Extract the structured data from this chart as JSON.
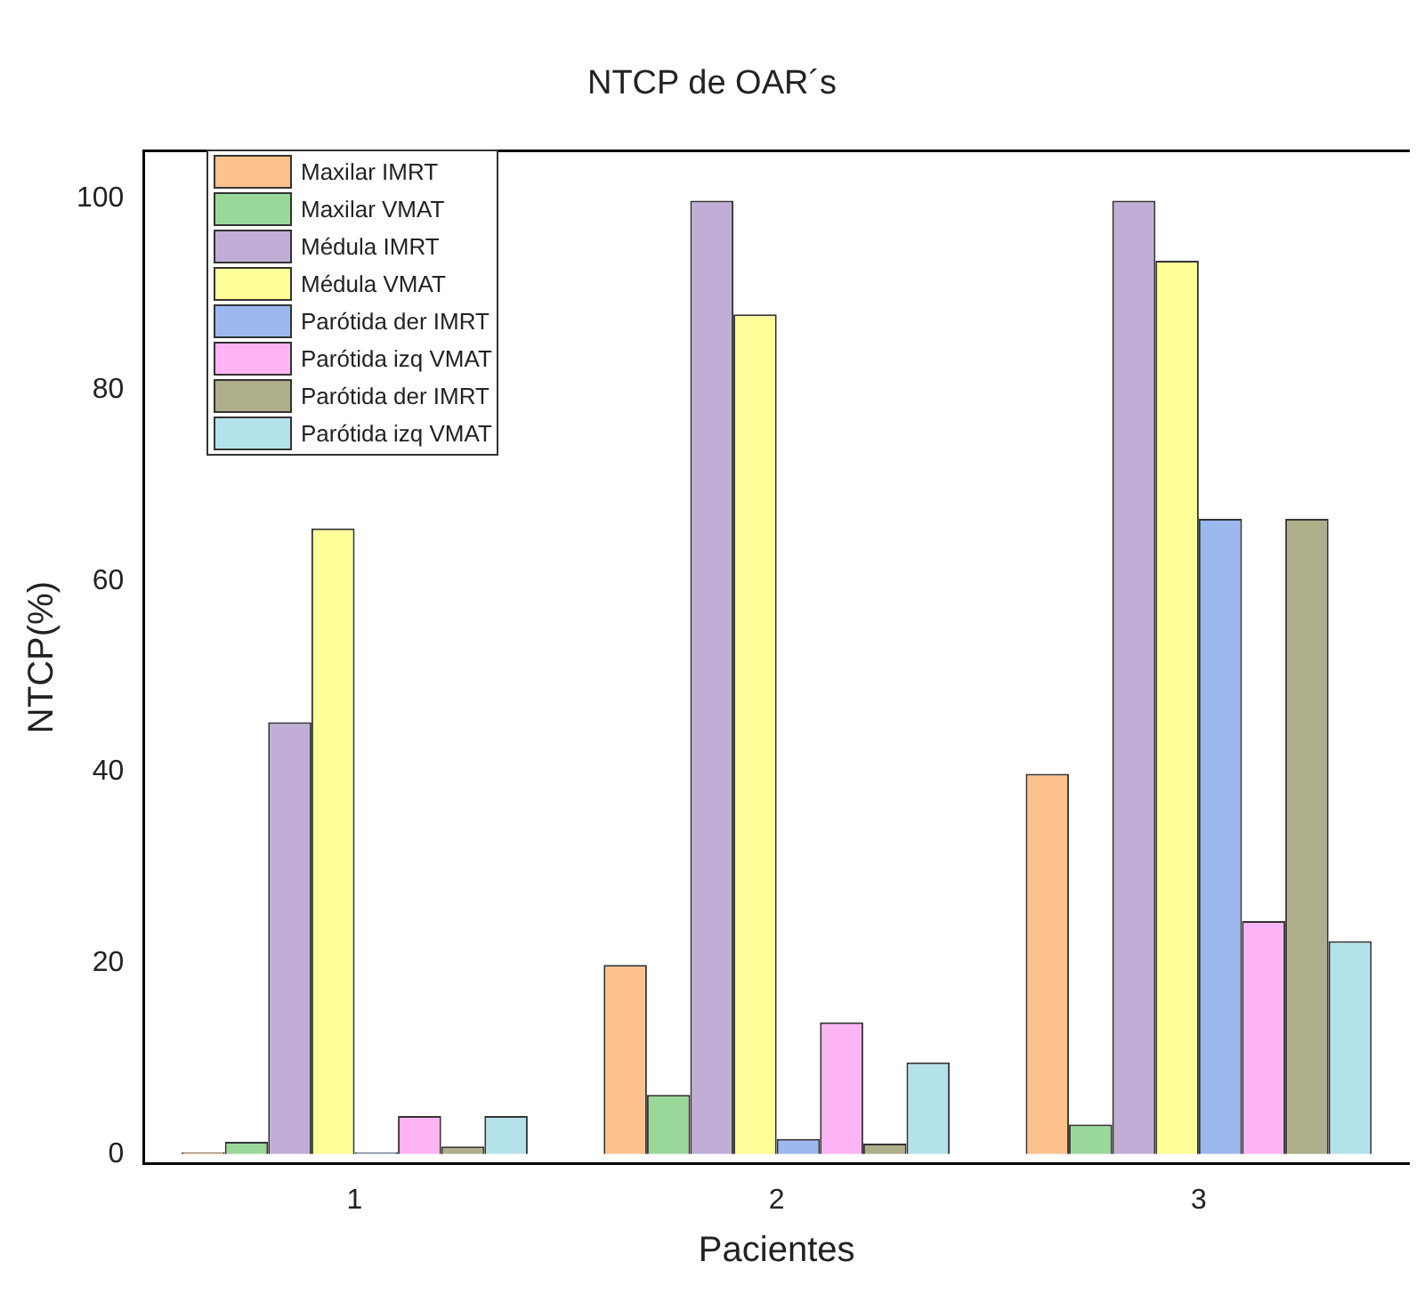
{
  "chart_data": {
    "type": "bar",
    "title": "NTCP de OAR´s",
    "xlabel": "Pacientes",
    "ylabel": "NTCP(%)",
    "categories": [
      "1",
      "2",
      "3"
    ],
    "series": [
      {
        "name": "Maxilar IMRT",
        "color": "#fdc18e",
        "values": [
          0.2,
          19.8,
          39.8
        ]
      },
      {
        "name": "Maxilar VMAT",
        "color": "#9ad89a",
        "values": [
          1.3,
          6.2,
          3.1
        ]
      },
      {
        "name": "Médula IMRT",
        "color": "#c1aed6",
        "values": [
          45.2,
          99.8,
          99.8
        ]
      },
      {
        "name": "Médula VMAT",
        "color": "#fefe98",
        "values": [
          65.5,
          87.9,
          93.5
        ]
      },
      {
        "name": "Parótida der IMRT",
        "color": "#9bb8ef",
        "values": [
          0.2,
          1.6,
          66.5
        ]
      },
      {
        "name": "Parótida izq VMAT",
        "color": "#fdb4f5",
        "values": [
          4,
          13.8,
          24.4
        ]
      },
      {
        "name": "Parótida der IMRT",
        "color": "#aeae8a",
        "values": [
          0.8,
          1.1,
          66.5
        ]
      },
      {
        "name": "Parótida izq VMAT",
        "color": "#b4e2ea",
        "values": [
          4,
          9.6,
          22.3
        ]
      }
    ],
    "ylim": [
      -1,
      105
    ],
    "yticks": [
      0,
      20,
      40,
      60,
      80,
      100
    ],
    "grid": false,
    "legend": "top left"
  }
}
